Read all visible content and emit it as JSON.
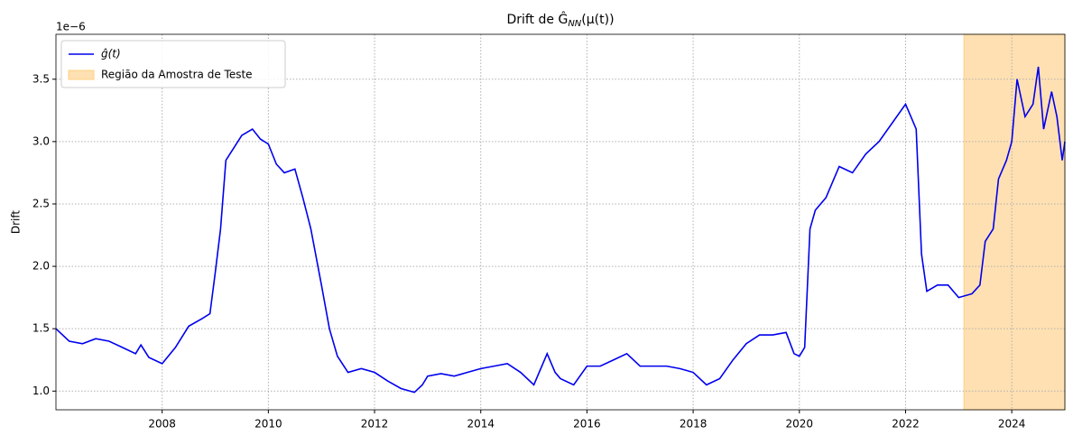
{
  "chart_data": {
    "type": "line",
    "title": "Drift de Ĝ",
    "title_subscript": "NN",
    "title_suffix": "(μ(t))",
    "ylabel": "Drift",
    "y_offset_label": "1e−6",
    "x": [
      2006.0,
      2006.25,
      2006.5,
      2006.75,
      2007.0,
      2007.25,
      2007.5,
      2007.6,
      2007.75,
      2008.0,
      2008.25,
      2008.5,
      2008.75,
      2008.9,
      2009.0,
      2009.1,
      2009.2,
      2009.35,
      2009.5,
      2009.7,
      2009.85,
      2010.0,
      2010.15,
      2010.3,
      2010.5,
      2010.65,
      2010.8,
      2011.0,
      2011.15,
      2011.3,
      2011.5,
      2011.75,
      2012.0,
      2012.25,
      2012.5,
      2012.75,
      2012.9,
      2013.0,
      2013.25,
      2013.5,
      2013.75,
      2014.0,
      2014.25,
      2014.5,
      2014.75,
      2015.0,
      2015.25,
      2015.4,
      2015.5,
      2015.75,
      2016.0,
      2016.25,
      2016.5,
      2016.75,
      2017.0,
      2017.25,
      2017.5,
      2017.75,
      2018.0,
      2018.25,
      2018.5,
      2018.75,
      2019.0,
      2019.25,
      2019.5,
      2019.75,
      2019.9,
      2020.0,
      2020.1,
      2020.2,
      2020.3,
      2020.5,
      2020.75,
      2021.0,
      2021.25,
      2021.5,
      2021.75,
      2022.0,
      2022.1,
      2022.2,
      2022.3,
      2022.4,
      2022.6,
      2022.8,
      2023.0,
      2023.25,
      2023.4,
      2023.5,
      2023.65,
      2023.75,
      2023.9,
      2024.0,
      2024.1,
      2024.25,
      2024.4,
      2024.5,
      2024.6,
      2024.75,
      2024.85,
      2024.95,
      2025.0
    ],
    "series": [
      {
        "name": "ĝ(t)",
        "color": "#0000ee",
        "values": [
          1.5,
          1.4,
          1.38,
          1.42,
          1.4,
          1.35,
          1.3,
          1.37,
          1.27,
          1.22,
          1.35,
          1.52,
          1.58,
          1.62,
          1.95,
          2.3,
          2.85,
          2.95,
          3.05,
          3.1,
          3.02,
          2.98,
          2.82,
          2.75,
          2.78,
          2.55,
          2.3,
          1.85,
          1.5,
          1.28,
          1.15,
          1.18,
          1.15,
          1.08,
          1.02,
          0.99,
          1.05,
          1.12,
          1.14,
          1.12,
          1.15,
          1.18,
          1.2,
          1.22,
          1.15,
          1.05,
          1.3,
          1.15,
          1.1,
          1.05,
          1.2,
          1.2,
          1.25,
          1.3,
          1.2,
          1.2,
          1.2,
          1.18,
          1.15,
          1.05,
          1.1,
          1.25,
          1.38,
          1.45,
          1.45,
          1.47,
          1.3,
          1.28,
          1.35,
          2.3,
          2.45,
          2.55,
          2.8,
          2.75,
          2.9,
          3.0,
          3.15,
          3.3,
          3.2,
          3.1,
          2.1,
          1.8,
          1.85,
          1.85,
          1.75,
          1.78,
          1.85,
          2.2,
          2.3,
          2.7,
          2.85,
          3.0,
          3.5,
          3.2,
          3.3,
          3.6,
          3.1,
          3.4,
          3.2,
          2.85,
          3.0
        ]
      }
    ],
    "shaded_region": {
      "name": "Região da Amostra de Teste",
      "color": "#ffe0b2",
      "edge": "#ffd083",
      "x": [
        2023.1,
        2025.0
      ]
    },
    "xlim": [
      2006.0,
      2025.0
    ],
    "xticks": [
      2008,
      2010,
      2012,
      2014,
      2016,
      2018,
      2020,
      2022,
      2024
    ],
    "ylim": [
      0.85,
      3.86
    ],
    "yticks": [
      1.0,
      1.5,
      2.0,
      2.5,
      3.0,
      3.5
    ],
    "grid": true,
    "legend": "upper left"
  }
}
